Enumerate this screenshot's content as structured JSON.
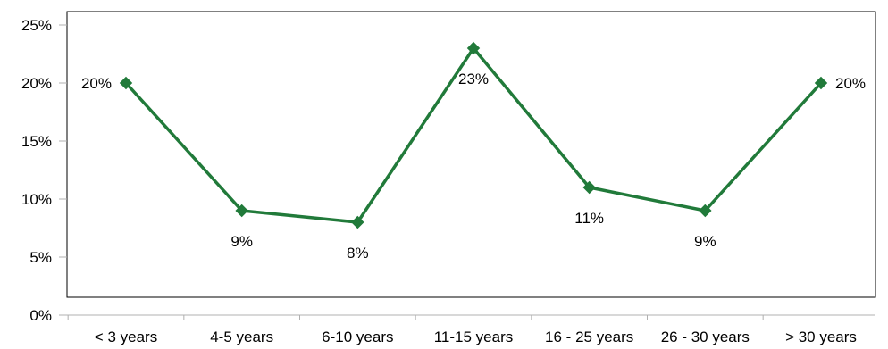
{
  "chart_data": {
    "type": "line",
    "title": "",
    "xlabel": "",
    "ylabel": "",
    "categories": [
      "< 3 years",
      "4-5 years",
      "6-10 years",
      "11-15 years",
      "16 - 25 years",
      "26 - 30 years",
      "> 30 years"
    ],
    "series": [
      {
        "values": [
          20,
          9,
          8,
          23,
          11,
          9,
          20
        ],
        "data_labels": [
          "20%",
          "9%",
          "8%",
          "23%",
          "11%",
          "9%",
          "20%"
        ],
        "color": "#217a3a",
        "marker": "diamond"
      }
    ],
    "ylim": [
      0,
      25
    ],
    "yticks": [
      0,
      5,
      10,
      15,
      20,
      25
    ],
    "ytick_labels": [
      "0%",
      "5%",
      "10%",
      "15%",
      "20%",
      "25%"
    ],
    "grid": false,
    "legend": "none"
  }
}
